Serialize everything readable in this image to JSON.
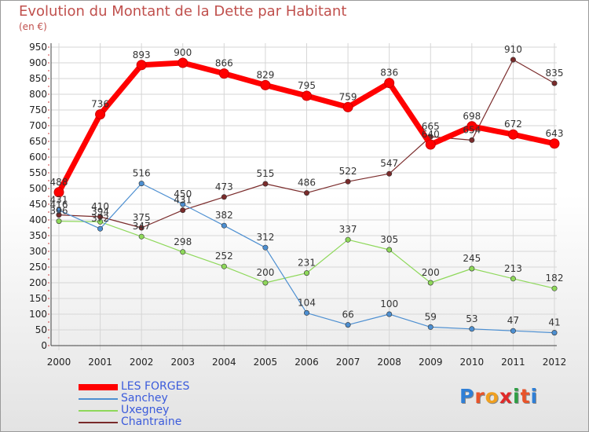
{
  "title": "Evolution du Montant de la Dette par Habitant",
  "subtitle": "(en €)",
  "logo": "Proxiti",
  "chart_data": {
    "type": "line",
    "x": [
      "2000",
      "2001",
      "2002",
      "2003",
      "2004",
      "2005",
      "2006",
      "2007",
      "2008",
      "2009",
      "2010",
      "2011",
      "2012"
    ],
    "ylim": [
      0,
      950
    ],
    "yticks": [
      0,
      50,
      100,
      150,
      200,
      250,
      300,
      350,
      400,
      450,
      500,
      550,
      600,
      650,
      700,
      750,
      800,
      850,
      900,
      950
    ],
    "grid": true,
    "legend_position": "bottom-left",
    "series": [
      {
        "name": "LES FORGES",
        "color": "#ff0000",
        "values": [
          488,
          736,
          893,
          900,
          866,
          829,
          795,
          759,
          836,
          640,
          698,
          672,
          643
        ],
        "labels": [
          "488",
          "736",
          "893",
          "900",
          "866",
          "829",
          "795",
          "759",
          "836",
          "640",
          "698",
          "672",
          "643"
        ]
      },
      {
        "name": "Sanchey",
        "color": "#4d8fd1",
        "values": [
          431,
          372,
          516,
          450,
          382,
          312,
          104,
          66,
          100,
          59,
          53,
          47,
          41
        ],
        "labels": [
          "431",
          "372",
          "516",
          "450",
          "382",
          "312",
          "104",
          "66",
          "100",
          "59",
          "53",
          "47",
          "41"
        ]
      },
      {
        "name": "Uxegney",
        "color": "#8ed85a",
        "values": [
          396,
          394,
          347,
          298,
          252,
          200,
          231,
          337,
          305,
          200,
          245,
          213,
          182
        ],
        "labels": [
          "396",
          "394",
          "347",
          "298",
          "252",
          "200",
          "231",
          "337",
          "305",
          "200",
          "245",
          "213",
          "182"
        ]
      },
      {
        "name": "Chantraine",
        "color": "#7a2b2b",
        "values": [
          416,
          410,
          375,
          431,
          473,
          515,
          486,
          522,
          547,
          665,
          654,
          910,
          835
        ],
        "labels": [
          "416",
          "410",
          "375",
          "431",
          "473",
          "515",
          "486",
          "522",
          "547",
          "665",
          "654",
          "910",
          "835"
        ]
      }
    ]
  }
}
